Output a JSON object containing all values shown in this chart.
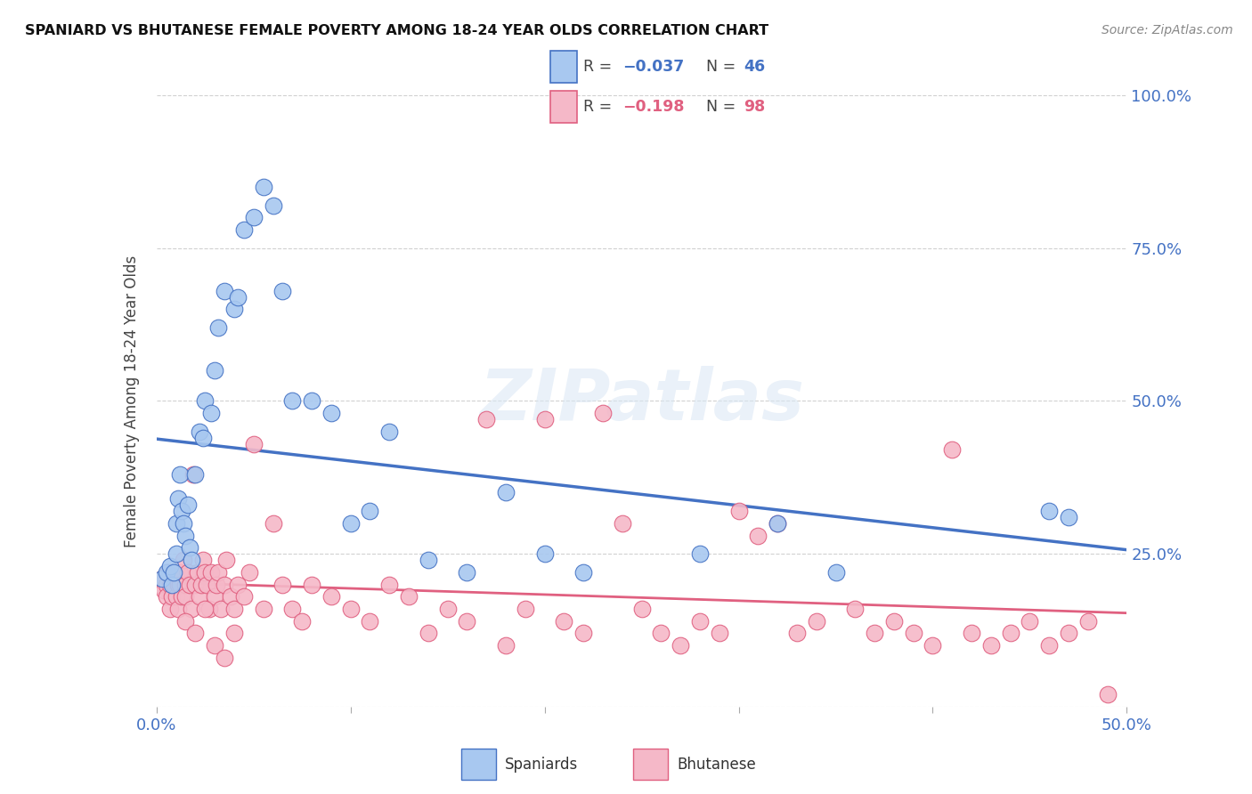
{
  "title": "SPANIARD VS BHUTANESE FEMALE POVERTY AMONG 18-24 YEAR OLDS CORRELATION CHART",
  "source": "Source: ZipAtlas.com",
  "ylabel": "Female Poverty Among 18-24 Year Olds",
  "xlim": [
    0.0,
    0.5
  ],
  "ylim": [
    0.0,
    1.0
  ],
  "xticks": [
    0.0,
    0.1,
    0.2,
    0.3,
    0.4,
    0.5
  ],
  "yticks": [
    0.0,
    0.25,
    0.5,
    0.75,
    1.0
  ],
  "spaniard_color": "#a8c8f0",
  "bhutanese_color": "#f5b8c8",
  "spaniard_edge_color": "#4472c4",
  "bhutanese_edge_color": "#e06080",
  "spaniard_line_color": "#4472c4",
  "bhutanese_line_color": "#e06080",
  "spaniard_R": -0.037,
  "spaniard_N": 46,
  "bhutanese_R": -0.198,
  "bhutanese_N": 98,
  "watermark": "ZIPatlas",
  "sp_x": [
    0.003,
    0.005,
    0.007,
    0.008,
    0.009,
    0.01,
    0.01,
    0.011,
    0.012,
    0.013,
    0.014,
    0.015,
    0.016,
    0.017,
    0.018,
    0.02,
    0.022,
    0.024,
    0.025,
    0.028,
    0.03,
    0.032,
    0.035,
    0.04,
    0.042,
    0.045,
    0.05,
    0.055,
    0.06,
    0.065,
    0.07,
    0.08,
    0.09,
    0.1,
    0.11,
    0.12,
    0.14,
    0.16,
    0.18,
    0.2,
    0.22,
    0.28,
    0.32,
    0.35,
    0.46,
    0.47
  ],
  "sp_y": [
    0.21,
    0.22,
    0.23,
    0.2,
    0.22,
    0.25,
    0.3,
    0.34,
    0.38,
    0.32,
    0.3,
    0.28,
    0.33,
    0.26,
    0.24,
    0.38,
    0.45,
    0.44,
    0.5,
    0.48,
    0.55,
    0.62,
    0.68,
    0.65,
    0.67,
    0.78,
    0.8,
    0.85,
    0.82,
    0.68,
    0.5,
    0.5,
    0.48,
    0.3,
    0.32,
    0.45,
    0.24,
    0.22,
    0.35,
    0.25,
    0.22,
    0.25,
    0.3,
    0.22,
    0.32,
    0.31
  ],
  "bh_x": [
    0.002,
    0.003,
    0.004,
    0.005,
    0.005,
    0.006,
    0.007,
    0.007,
    0.008,
    0.008,
    0.009,
    0.01,
    0.01,
    0.011,
    0.011,
    0.012,
    0.012,
    0.013,
    0.014,
    0.015,
    0.015,
    0.016,
    0.017,
    0.018,
    0.019,
    0.02,
    0.021,
    0.022,
    0.023,
    0.024,
    0.025,
    0.026,
    0.027,
    0.028,
    0.03,
    0.031,
    0.032,
    0.033,
    0.035,
    0.036,
    0.038,
    0.04,
    0.042,
    0.045,
    0.048,
    0.05,
    0.055,
    0.06,
    0.065,
    0.07,
    0.075,
    0.08,
    0.09,
    0.1,
    0.11,
    0.12,
    0.13,
    0.14,
    0.15,
    0.16,
    0.17,
    0.18,
    0.19,
    0.2,
    0.21,
    0.22,
    0.23,
    0.24,
    0.25,
    0.26,
    0.27,
    0.28,
    0.29,
    0.3,
    0.31,
    0.32,
    0.33,
    0.34,
    0.36,
    0.37,
    0.38,
    0.39,
    0.4,
    0.41,
    0.42,
    0.43,
    0.44,
    0.45,
    0.46,
    0.47,
    0.48,
    0.49,
    0.015,
    0.02,
    0.025,
    0.03,
    0.035,
    0.04
  ],
  "bh_y": [
    0.2,
    0.21,
    0.19,
    0.2,
    0.18,
    0.22,
    0.2,
    0.16,
    0.22,
    0.18,
    0.2,
    0.18,
    0.22,
    0.16,
    0.2,
    0.22,
    0.2,
    0.18,
    0.24,
    0.2,
    0.18,
    0.22,
    0.2,
    0.16,
    0.38,
    0.2,
    0.22,
    0.18,
    0.2,
    0.24,
    0.22,
    0.2,
    0.16,
    0.22,
    0.18,
    0.2,
    0.22,
    0.16,
    0.2,
    0.24,
    0.18,
    0.16,
    0.2,
    0.18,
    0.22,
    0.43,
    0.16,
    0.3,
    0.2,
    0.16,
    0.14,
    0.2,
    0.18,
    0.16,
    0.14,
    0.2,
    0.18,
    0.12,
    0.16,
    0.14,
    0.47,
    0.1,
    0.16,
    0.47,
    0.14,
    0.12,
    0.48,
    0.3,
    0.16,
    0.12,
    0.1,
    0.14,
    0.12,
    0.32,
    0.28,
    0.3,
    0.12,
    0.14,
    0.16,
    0.12,
    0.14,
    0.12,
    0.1,
    0.42,
    0.12,
    0.1,
    0.12,
    0.14,
    0.1,
    0.12,
    0.14,
    0.02,
    0.14,
    0.12,
    0.16,
    0.1,
    0.08,
    0.12
  ]
}
